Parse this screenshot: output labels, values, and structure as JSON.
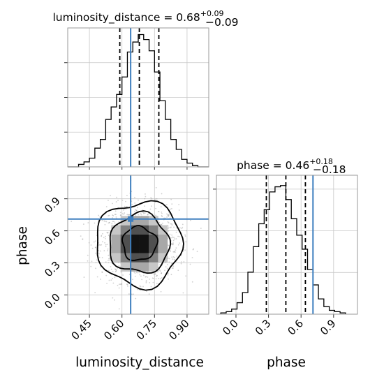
{
  "chart_data": {
    "type": "corner",
    "truth_color": "#3f7fbf",
    "parameters": [
      {
        "name": "luminosity_distance",
        "xlabel": "luminosity_distance",
        "title_main": "luminosity_distance = 0.68",
        "title_sup": "+0.09",
        "title_sub": "−0.09",
        "median": 0.68,
        "lower_err": 0.09,
        "upper_err": 0.09,
        "truth": 0.64,
        "quantiles": [
          0.59,
          0.68,
          0.77
        ],
        "range": [
          0.35,
          1.0
        ],
        "ticks": [
          0.45,
          0.6,
          0.75,
          0.9
        ],
        "tick_labels": [
          "0.45",
          "0.60",
          "0.75",
          "0.90"
        ],
        "hist_edges": [
          0.35,
          0.375,
          0.4,
          0.425,
          0.45,
          0.475,
          0.5,
          0.525,
          0.55,
          0.575,
          0.6,
          0.625,
          0.65,
          0.675,
          0.7,
          0.725,
          0.75,
          0.775,
          0.8,
          0.825,
          0.85,
          0.875,
          0.9,
          0.925,
          0.95,
          0.975,
          1.0
        ],
        "hist_counts": [
          0,
          0,
          2,
          4,
          7,
          15,
          22,
          38,
          48,
          58,
          72,
          92,
          100,
          106,
          102,
          93,
          76,
          53,
          38,
          22,
          14,
          6,
          3,
          1,
          0,
          0
        ]
      },
      {
        "name": "phase",
        "xlabel": "phase",
        "ylabel": "phase",
        "title_main": "phase = 0.46",
        "title_sup": "+0.18",
        "title_sub": "−0.18",
        "median": 0.46,
        "lower_err": 0.18,
        "upper_err": 0.18,
        "truth": 0.71,
        "quantiles": [
          0.28,
          0.46,
          0.64
        ],
        "range": [
          -0.18,
          1.12
        ],
        "ticks": [
          0.0,
          0.3,
          0.6,
          0.9
        ],
        "tick_labels": [
          "0.0",
          "0.3",
          "0.6",
          "0.9"
        ],
        "hist_edges": [
          -0.14,
          -0.09,
          -0.04,
          0.01,
          0.06,
          0.11,
          0.16,
          0.21,
          0.26,
          0.31,
          0.36,
          0.41,
          0.46,
          0.51,
          0.56,
          0.61,
          0.66,
          0.71,
          0.76,
          0.81,
          0.86,
          0.91,
          0.96,
          1.01
        ],
        "hist_counts": [
          1,
          2,
          4,
          9,
          17,
          33,
          53,
          71,
          82,
          96,
          100,
          101,
          90,
          75,
          62,
          51,
          35,
          23,
          12,
          6,
          3,
          2,
          1
        ]
      }
    ],
    "joint": {
      "x": "luminosity_distance",
      "y": "phase",
      "center": [
        0.68,
        0.48
      ],
      "contour_radii": [
        0.4,
        0.7,
        1.0
      ],
      "spread": [
        0.09,
        0.18
      ]
    }
  }
}
